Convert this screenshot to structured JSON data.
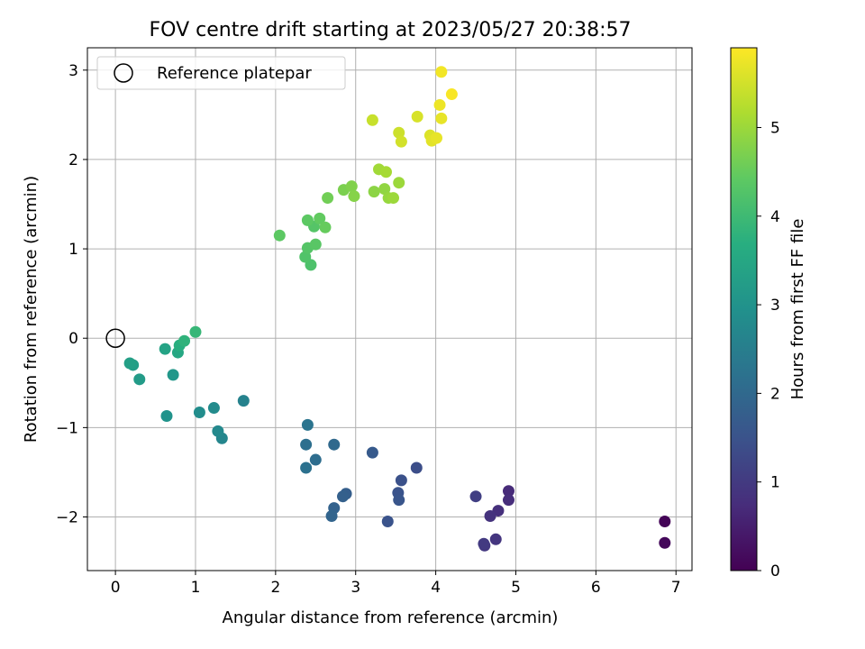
{
  "chart_data": {
    "type": "scatter",
    "title": "FOV centre drift starting at 2023/05/27 20:38:57",
    "xlabel": "Angular distance from reference (arcmin)",
    "ylabel": "Rotation from reference (arcmin)",
    "xlim": [
      -0.35,
      7.2
    ],
    "ylim": [
      -2.6,
      3.25
    ],
    "xticks": [
      "0",
      "1",
      "2",
      "3",
      "4",
      "5",
      "6",
      "7"
    ],
    "yticks": [
      "−2",
      "−1",
      "0",
      "1",
      "2",
      "3"
    ],
    "grid": true,
    "legend": {
      "placement": "top-left",
      "entries": [
        "Reference platepar"
      ]
    },
    "colorbar": {
      "label": "Hours from first FF file",
      "colormap": "viridis",
      "range": [
        0,
        5.9
      ],
      "ticks": [
        "0",
        "1",
        "2",
        "3",
        "4",
        "5"
      ]
    },
    "reference_point": {
      "x": 0,
      "y": 0
    },
    "points": [
      {
        "x": 6.86,
        "y": -2.05,
        "c": 0.05
      },
      {
        "x": 6.86,
        "y": -2.29,
        "c": 0.12
      },
      {
        "x": 4.91,
        "y": -1.71,
        "c": 0.7
      },
      {
        "x": 4.91,
        "y": -1.81,
        "c": 0.75
      },
      {
        "x": 4.78,
        "y": -1.93,
        "c": 0.8
      },
      {
        "x": 4.68,
        "y": -1.99,
        "c": 0.85
      },
      {
        "x": 4.75,
        "y": -2.25,
        "c": 0.9
      },
      {
        "x": 4.61,
        "y": -2.32,
        "c": 0.95
      },
      {
        "x": 4.6,
        "y": -2.3,
        "c": 1.0
      },
      {
        "x": 4.5,
        "y": -1.77,
        "c": 1.1
      },
      {
        "x": 3.76,
        "y": -1.45,
        "c": 1.4
      },
      {
        "x": 3.57,
        "y": -1.59,
        "c": 1.45
      },
      {
        "x": 3.53,
        "y": -1.73,
        "c": 1.5
      },
      {
        "x": 3.54,
        "y": -1.81,
        "c": 1.55
      },
      {
        "x": 3.4,
        "y": -2.05,
        "c": 1.5
      },
      {
        "x": 3.21,
        "y": -1.28,
        "c": 1.65
      },
      {
        "x": 2.88,
        "y": -1.74,
        "c": 1.75
      },
      {
        "x": 2.84,
        "y": -1.77,
        "c": 1.8
      },
      {
        "x": 2.73,
        "y": -1.9,
        "c": 1.85
      },
      {
        "x": 2.7,
        "y": -1.99,
        "c": 1.9
      },
      {
        "x": 2.73,
        "y": -1.19,
        "c": 2.0
      },
      {
        "x": 2.5,
        "y": -1.36,
        "c": 2.1
      },
      {
        "x": 2.38,
        "y": -1.19,
        "c": 2.15
      },
      {
        "x": 2.38,
        "y": -1.45,
        "c": 2.2
      },
      {
        "x": 2.4,
        "y": -0.97,
        "c": 2.25
      },
      {
        "x": 1.6,
        "y": -0.7,
        "c": 2.6
      },
      {
        "x": 1.33,
        "y": -1.12,
        "c": 2.7
      },
      {
        "x": 1.28,
        "y": -1.04,
        "c": 2.75
      },
      {
        "x": 1.23,
        "y": -0.78,
        "c": 2.8
      },
      {
        "x": 1.05,
        "y": -0.83,
        "c": 2.85
      },
      {
        "x": 0.64,
        "y": -0.87,
        "c": 3.0
      },
      {
        "x": 0.72,
        "y": -0.41,
        "c": 3.1
      },
      {
        "x": 0.3,
        "y": -0.46,
        "c": 3.2
      },
      {
        "x": 0.22,
        "y": -0.3,
        "c": 3.25
      },
      {
        "x": 0.18,
        "y": -0.28,
        "c": 3.3
      },
      {
        "x": 0.62,
        "y": -0.12,
        "c": 3.4
      },
      {
        "x": 0.78,
        "y": -0.16,
        "c": 3.5
      },
      {
        "x": 0.8,
        "y": -0.08,
        "c": 3.7
      },
      {
        "x": 0.86,
        "y": -0.03,
        "c": 3.8
      },
      {
        "x": 1.0,
        "y": 0.07,
        "c": 3.9
      },
      {
        "x": 2.44,
        "y": 0.82,
        "c": 4.2
      },
      {
        "x": 2.37,
        "y": 0.91,
        "c": 4.25
      },
      {
        "x": 2.4,
        "y": 1.01,
        "c": 4.3
      },
      {
        "x": 2.5,
        "y": 1.05,
        "c": 4.35
      },
      {
        "x": 2.05,
        "y": 1.15,
        "c": 4.4
      },
      {
        "x": 2.48,
        "y": 1.25,
        "c": 4.3
      },
      {
        "x": 2.4,
        "y": 1.32,
        "c": 4.4
      },
      {
        "x": 2.55,
        "y": 1.34,
        "c": 4.45
      },
      {
        "x": 2.62,
        "y": 1.24,
        "c": 4.5
      },
      {
        "x": 2.65,
        "y": 1.57,
        "c": 4.6
      },
      {
        "x": 2.85,
        "y": 1.66,
        "c": 4.7
      },
      {
        "x": 2.95,
        "y": 1.7,
        "c": 4.75
      },
      {
        "x": 2.98,
        "y": 1.59,
        "c": 4.8
      },
      {
        "x": 3.23,
        "y": 1.64,
        "c": 4.85
      },
      {
        "x": 3.36,
        "y": 1.67,
        "c": 4.9
      },
      {
        "x": 3.41,
        "y": 1.57,
        "c": 4.95
      },
      {
        "x": 3.47,
        "y": 1.57,
        "c": 5.0
      },
      {
        "x": 3.54,
        "y": 1.74,
        "c": 5.0
      },
      {
        "x": 3.29,
        "y": 1.89,
        "c": 5.05
      },
      {
        "x": 3.38,
        "y": 1.86,
        "c": 5.1
      },
      {
        "x": 3.21,
        "y": 2.44,
        "c": 5.4
      },
      {
        "x": 3.54,
        "y": 2.3,
        "c": 5.45
      },
      {
        "x": 3.57,
        "y": 2.2,
        "c": 5.5
      },
      {
        "x": 3.77,
        "y": 2.48,
        "c": 5.55
      },
      {
        "x": 3.93,
        "y": 2.27,
        "c": 5.6
      },
      {
        "x": 3.95,
        "y": 2.21,
        "c": 5.65
      },
      {
        "x": 4.01,
        "y": 2.24,
        "c": 5.7
      },
      {
        "x": 4.07,
        "y": 2.46,
        "c": 5.7
      },
      {
        "x": 4.05,
        "y": 2.61,
        "c": 5.75
      },
      {
        "x": 4.2,
        "y": 2.73,
        "c": 5.85
      },
      {
        "x": 4.07,
        "y": 2.98,
        "c": 5.8
      }
    ]
  }
}
